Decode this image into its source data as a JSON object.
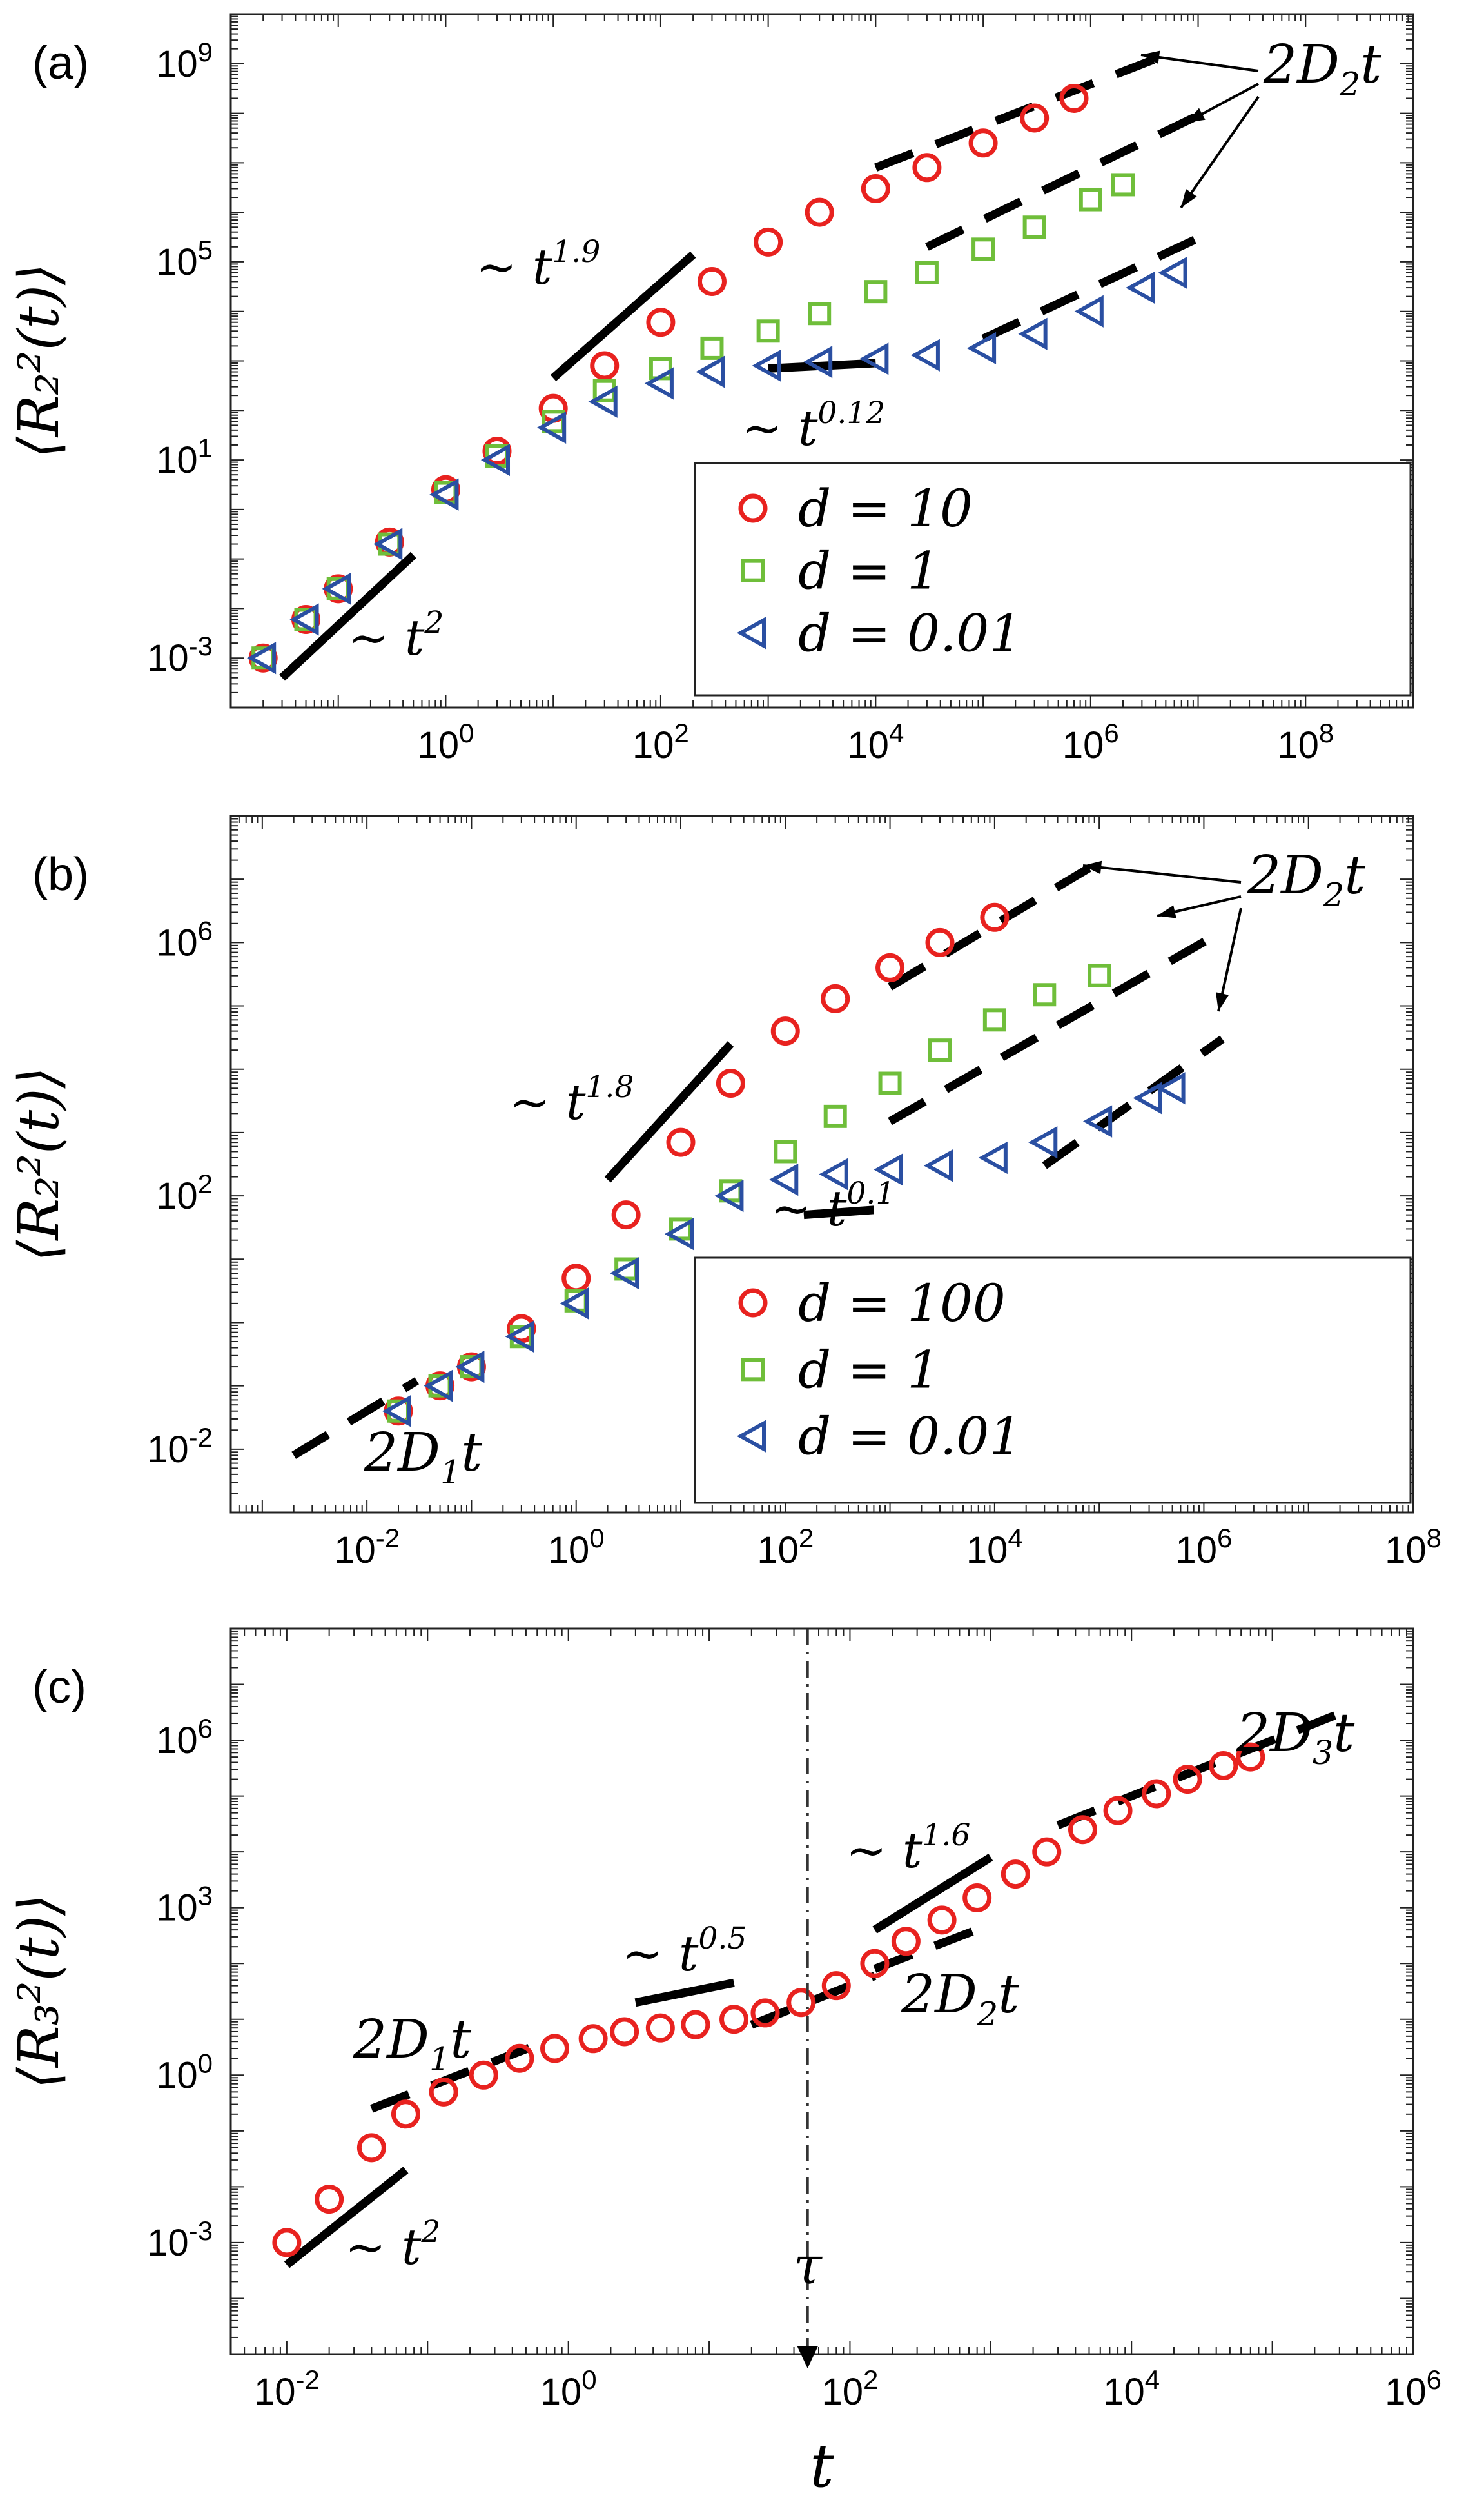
{
  "figure": {
    "panels": [
      "(a)",
      "(b)",
      "(c)"
    ]
  },
  "chart_data": [
    {
      "type": "scatter",
      "panel_label": "(a)",
      "ylabel": "⟨R₂²(t)⟩",
      "xlabel": "",
      "x_scale": "log",
      "y_scale": "log",
      "xlim": [
        0.01,
        1000000000.0
      ],
      "ylim": [
        0.0001,
        10000000000.0
      ],
      "xticks": [
        1,
        100,
        10000,
        1000000,
        100000000
      ],
      "xtick_labels": [
        "10^0",
        "10^2",
        "10^4",
        "10^6",
        "10^8"
      ],
      "yticks": [
        0.001,
        10,
        100000,
        1000000000
      ],
      "ytick_labels": [
        "10^-3",
        "10^1",
        "10^5",
        "10^9"
      ],
      "legend_position": "bottom-right",
      "series": [
        {
          "name": "d = 10",
          "marker": "circle",
          "color": "#e8221f",
          "x": [
            0.02,
            0.05,
            0.1,
            0.3,
            1,
            3,
            10,
            30,
            100,
            300,
            1000,
            3000,
            10000,
            30000,
            100000,
            300000,
            700000
          ],
          "y": [
            0.001,
            0.006,
            0.025,
            0.22,
            2.5,
            15,
            110,
            800,
            6000,
            40000,
            250000,
            1000000,
            3000000,
            8000000,
            25000000,
            80000000,
            200000000
          ]
        },
        {
          "name": "d = 1",
          "marker": "square",
          "color": "#6fbe3a",
          "x": [
            0.02,
            0.05,
            0.1,
            0.3,
            1,
            3,
            10,
            30,
            100,
            300,
            1000,
            3000,
            10000,
            30000,
            100000,
            300000,
            1000000,
            2000000
          ],
          "y": [
            0.001,
            0.006,
            0.025,
            0.2,
            2.2,
            12,
            60,
            250,
            700,
            1800,
            4000,
            9000,
            25000,
            60000,
            180000,
            500000,
            1800000,
            3600000
          ]
        },
        {
          "name": "d = 0.01",
          "marker": "triangle-left",
          "color": "#2a4fa2",
          "x": [
            0.02,
            0.05,
            0.1,
            0.3,
            1,
            3,
            10,
            30,
            100,
            300,
            1000,
            3000,
            10000,
            30000,
            100000,
            300000,
            1000000,
            3000000,
            6000000
          ],
          "y": [
            0.001,
            0.006,
            0.025,
            0.2,
            2,
            10,
            45,
            150,
            350,
            600,
            800,
            950,
            1100,
            1300,
            1800,
            3500,
            10000,
            30000,
            60000
          ]
        }
      ],
      "guides": [
        {
          "label": "~ t^2",
          "x": [
            0.03,
            0.5
          ],
          "y": [
            0.0004,
            0.12
          ]
        },
        {
          "label": "~ t^1.9",
          "x": [
            10,
            200
          ],
          "y": [
            450,
            140000
          ]
        },
        {
          "label": "~ t^0.12",
          "x": [
            1000,
            10000
          ],
          "y": [
            700,
            900
          ]
        },
        {
          "label": "2D2 t",
          "x": [
            10000,
            5000000
          ],
          "y": [
            8000000,
            1500000000
          ]
        },
        {
          "label": "2D2 t",
          "x": [
            30000,
            10000000
          ],
          "y": [
            200000,
            90000000
          ]
        },
        {
          "label": "2D2 t",
          "x": [
            100000,
            10000000
          ],
          "y": [
            2800,
            300000
          ]
        }
      ],
      "annotation": "2D₂t"
    },
    {
      "type": "scatter",
      "panel_label": "(b)",
      "ylabel": "⟨R₂²(t)⟩",
      "xlabel": "",
      "x_scale": "log",
      "y_scale": "log",
      "xlim": [
        0.0005,
        100000000.0
      ],
      "ylim": [
        0.001,
        100000000.0
      ],
      "xticks": [
        0.01,
        1,
        100,
        10000,
        1000000,
        100000000
      ],
      "xtick_labels": [
        "10^-2",
        "10^0",
        "10^2",
        "10^4",
        "10^6",
        "10^8"
      ],
      "yticks": [
        0.01,
        100,
        1000000
      ],
      "ytick_labels": [
        "10^-2",
        "10^2",
        "10^6"
      ],
      "legend_position": "bottom-right",
      "series": [
        {
          "name": "d = 100",
          "marker": "circle",
          "color": "#e8221f",
          "x": [
            0.02,
            0.05,
            0.1,
            0.3,
            1,
            3,
            10,
            30,
            100,
            300,
            1000,
            3000,
            10000
          ],
          "y": [
            0.04,
            0.1,
            0.2,
            0.8,
            5,
            50,
            700,
            6000,
            40000,
            130000,
            400000,
            1000000,
            2500000
          ]
        },
        {
          "name": "d = 1",
          "marker": "square",
          "color": "#6fbe3a",
          "x": [
            0.02,
            0.05,
            0.1,
            0.3,
            1,
            3,
            10,
            30,
            100,
            300,
            1000,
            3000,
            10000,
            30000,
            100000
          ],
          "y": [
            0.04,
            0.1,
            0.2,
            0.6,
            2.2,
            7,
            30,
            120,
            500,
            1800,
            6000,
            20000,
            60000,
            150000,
            300000
          ]
        },
        {
          "name": "d = 0.01",
          "marker": "triangle-left",
          "color": "#2a4fa2",
          "x": [
            0.02,
            0.05,
            0.1,
            0.3,
            1,
            3,
            10,
            30,
            100,
            300,
            1000,
            3000,
            10000,
            30000,
            100000,
            300000,
            500000
          ],
          "y": [
            0.04,
            0.1,
            0.2,
            0.6,
            2,
            6,
            25,
            100,
            180,
            220,
            260,
            300,
            400,
            700,
            1500,
            3500,
            5000
          ]
        }
      ],
      "guides": [
        {
          "label": "2D1 t",
          "x": [
            0.002,
            0.03
          ],
          "y": [
            0.008,
            0.12
          ]
        },
        {
          "label": "~ t^1.8",
          "x": [
            2,
            30
          ],
          "y": [
            180,
            25000
          ]
        },
        {
          "label": "~ t^0.1",
          "x": [
            150,
            700
          ],
          "y": [
            50,
            60
          ]
        },
        {
          "label": "2D2 t",
          "x": [
            1000,
            80000
          ],
          "y": [
            200000,
            15000000
          ]
        },
        {
          "label": "2D2 t",
          "x": [
            1000,
            1500000
          ],
          "y": [
            1500,
            1500000
          ]
        },
        {
          "label": "2D2 t",
          "x": [
            30000,
            1500000
          ],
          "y": [
            300,
            30000
          ]
        }
      ],
      "annotation": "2D₂t"
    },
    {
      "type": "scatter",
      "panel_label": "(c)",
      "ylabel": "⟨R₃²(t)⟩",
      "xlabel": "t",
      "x_scale": "log",
      "y_scale": "log",
      "xlim": [
        0.004,
        1000000
      ],
      "ylim": [
        1e-05,
        100000000
      ],
      "xticks": [
        0.01,
        1,
        100,
        10000,
        1000000
      ],
      "xtick_labels": [
        "10^-2",
        "10^0",
        "10^2",
        "10^4",
        "10^6"
      ],
      "yticks": [
        0.001,
        1,
        1000,
        1000000
      ],
      "ytick_labels": [
        "10^-3",
        "10^0",
        "10^3",
        "10^6"
      ],
      "series": [
        {
          "name": "",
          "marker": "circle",
          "color": "#e8221f",
          "x": [
            0.01,
            0.02,
            0.04,
            0.07,
            0.13,
            0.25,
            0.45,
            0.8,
            1.5,
            2.5,
            4.5,
            8,
            15,
            25,
            45,
            80,
            150,
            250,
            450,
            800,
            1500,
            2500,
            4500,
            8000,
            15000,
            25000,
            45000,
            70000
          ],
          "y": [
            0.001,
            0.006,
            0.05,
            0.2,
            0.5,
            1,
            2,
            3,
            4.5,
            6,
            7,
            8,
            10,
            13,
            20,
            40,
            100,
            250,
            600,
            1500,
            4000,
            10000,
            25000,
            55000,
            110000,
            200000,
            350000,
            500000
          ]
        }
      ],
      "guides": [
        {
          "label": "~ t^2",
          "x": [
            0.01,
            0.07
          ],
          "y": [
            0.0004,
            0.02
          ]
        },
        {
          "label": "2D1 t",
          "x": [
            0.04,
            0.6
          ],
          "y": [
            0.25,
            3.5
          ]
        },
        {
          "label": "~ t^0.5",
          "x": [
            3,
            15
          ],
          "y": [
            20,
            45
          ]
        },
        {
          "label": "2D2 t",
          "x": [
            20,
            150
          ],
          "y": [
            8,
            60
          ]
        },
        {
          "label": "2D2 t",
          "x": [
            150,
            1000
          ],
          "y": [
            80,
            500
          ]
        },
        {
          "label": "~ t^1.6",
          "x": [
            150,
            1000
          ],
          "y": [
            400,
            8000
          ]
        },
        {
          "label": "2D3 t",
          "x": [
            3000,
            400000
          ],
          "y": [
            30000,
            4000000
          ]
        }
      ],
      "tau": {
        "label": "τ",
        "x": 50
      },
      "annotations": {
        "t_pow_2": "t²",
        "d1": "2D₁t",
        "t_pow_05": "t^0.5",
        "d2": "2D₂t",
        "t_pow_16": "t^1.6",
        "d3": "2D₃t"
      }
    }
  ]
}
